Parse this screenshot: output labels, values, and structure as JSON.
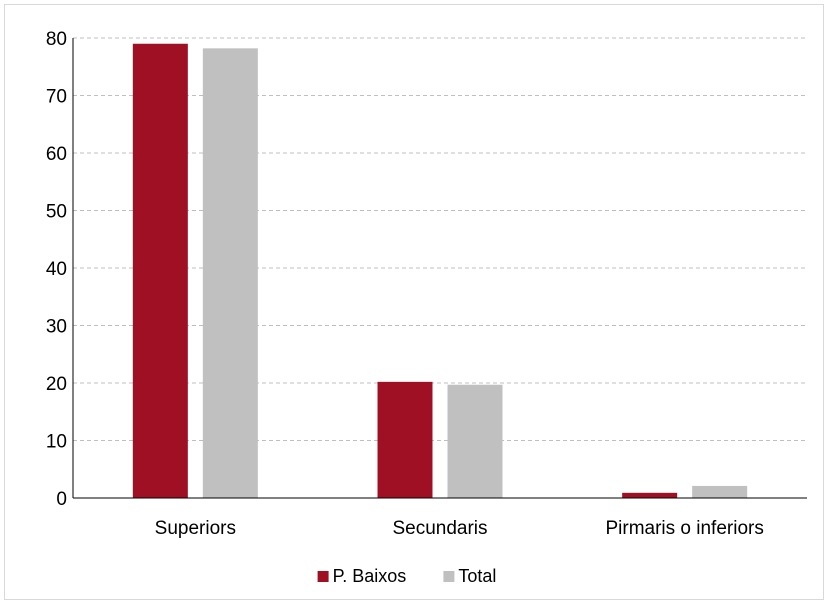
{
  "chart_data": {
    "type": "bar",
    "title": "",
    "xlabel": "",
    "ylabel": "",
    "categories": [
      "Superiors",
      "Secundaris",
      "Pirmaris o inferiors"
    ],
    "series": [
      {
        "name": "P. Baixos",
        "color": "#a01025",
        "values": [
          79.0,
          20.2,
          0.9
        ]
      },
      {
        "name": "Total",
        "color": "#c0c0c0",
        "values": [
          78.2,
          19.7,
          2.1
        ]
      }
    ],
    "ylim": [
      0,
      80
    ],
    "yticks": [
      0,
      10,
      20,
      30,
      40,
      50,
      60,
      70,
      80
    ],
    "grid": "horizontal-dashed",
    "legend_position": "bottom-center"
  }
}
